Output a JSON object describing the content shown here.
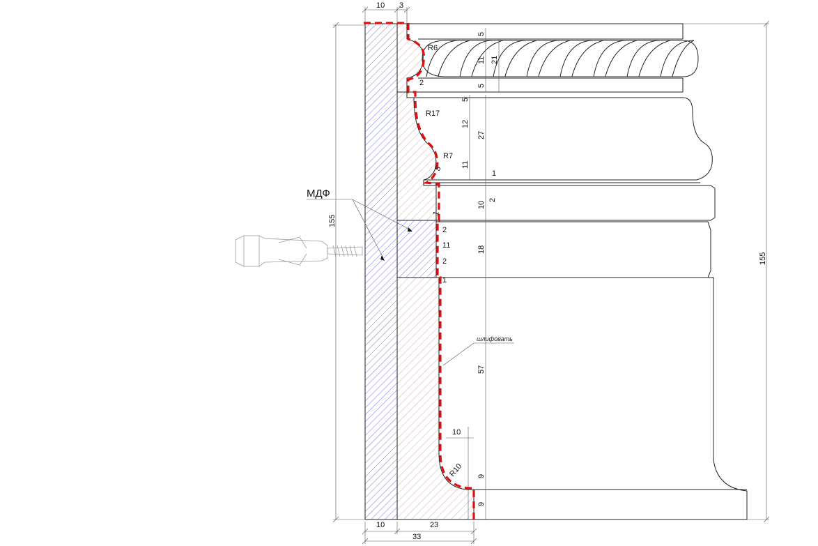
{
  "diagram": {
    "material_label": "МДФ",
    "note": "шлифовать",
    "colors": {
      "mdf_hatch": "#3a3ad0",
      "profile_hatch": "#b07a6a",
      "cut_line": "#e01010",
      "line": "#222222"
    },
    "dimensions": {
      "top": [
        "10",
        "3"
      ],
      "bottom": [
        "10",
        "23"
      ],
      "bottom_total": "33",
      "left_total": "155",
      "right_total": "155",
      "rope_band": [
        "5",
        "11",
        "21",
        "5"
      ],
      "upper_molding": [
        "5",
        "12",
        "27",
        "11",
        "1",
        "2"
      ],
      "middle_band": [
        "10",
        "2",
        "11",
        "18",
        "2"
      ],
      "lower_panel": [
        "57",
        "10",
        "9",
        "9"
      ],
      "radii": [
        "R6",
        "R17",
        "R7",
        "R10"
      ],
      "small_steps": [
        "2",
        "5",
        "1",
        "1"
      ]
    }
  }
}
